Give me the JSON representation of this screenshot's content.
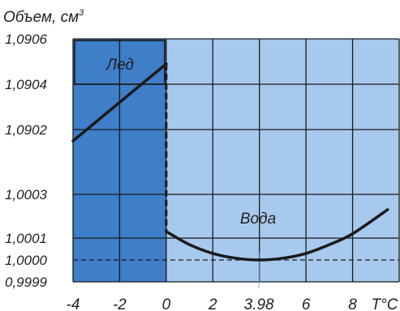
{
  "chart_data": {
    "type": "line",
    "ylabel": "Объем, см",
    "ylabel_sup": "3",
    "xunit": "T°C",
    "x_ticks": [
      {
        "label": "-4",
        "value": -4
      },
      {
        "label": "-2",
        "value": -2
      },
      {
        "label": "0",
        "value": 0
      },
      {
        "label": "2",
        "value": 2
      },
      {
        "label": "3.98",
        "value": 3.98
      },
      {
        "label": "6",
        "value": 6
      },
      {
        "label": "8",
        "value": 8
      }
    ],
    "y_ticks": [
      "1,0906",
      "1,0904",
      "1,0902",
      "1,0003",
      "1,0001",
      "1,0000",
      "0,9999"
    ],
    "region_labels": {
      "ice": "Лед",
      "water": "Вода"
    },
    "axis_break": "между 1,0902 и 1,0003 (разрыв шкалы)",
    "series": [
      {
        "name": "Лед",
        "x": [
          -4,
          -2,
          0
        ],
        "y": [
          1.09015,
          1.09032,
          1.09049
        ]
      },
      {
        "name": "Вода",
        "x": [
          0,
          1,
          2,
          3,
          3.98,
          5,
          6,
          7,
          8,
          9.5
        ],
        "y": [
          1.00013,
          1.00007,
          1.00003,
          1.000008,
          1.0,
          1.000008,
          1.00003,
          1.00007,
          1.00012,
          1.00023
        ]
      }
    ],
    "reference_line": {
      "y": 1.0,
      "style": "dashed"
    },
    "minimum_marker": {
      "x": 3.98,
      "y": 1.0
    },
    "xlim": [
      -4,
      10
    ],
    "grid": true,
    "colors": {
      "ice_region": "#3f7ec8",
      "water_region": "#a8c9ee",
      "grid": "#1a1a1a",
      "curve": "#1a1a1a"
    }
  }
}
